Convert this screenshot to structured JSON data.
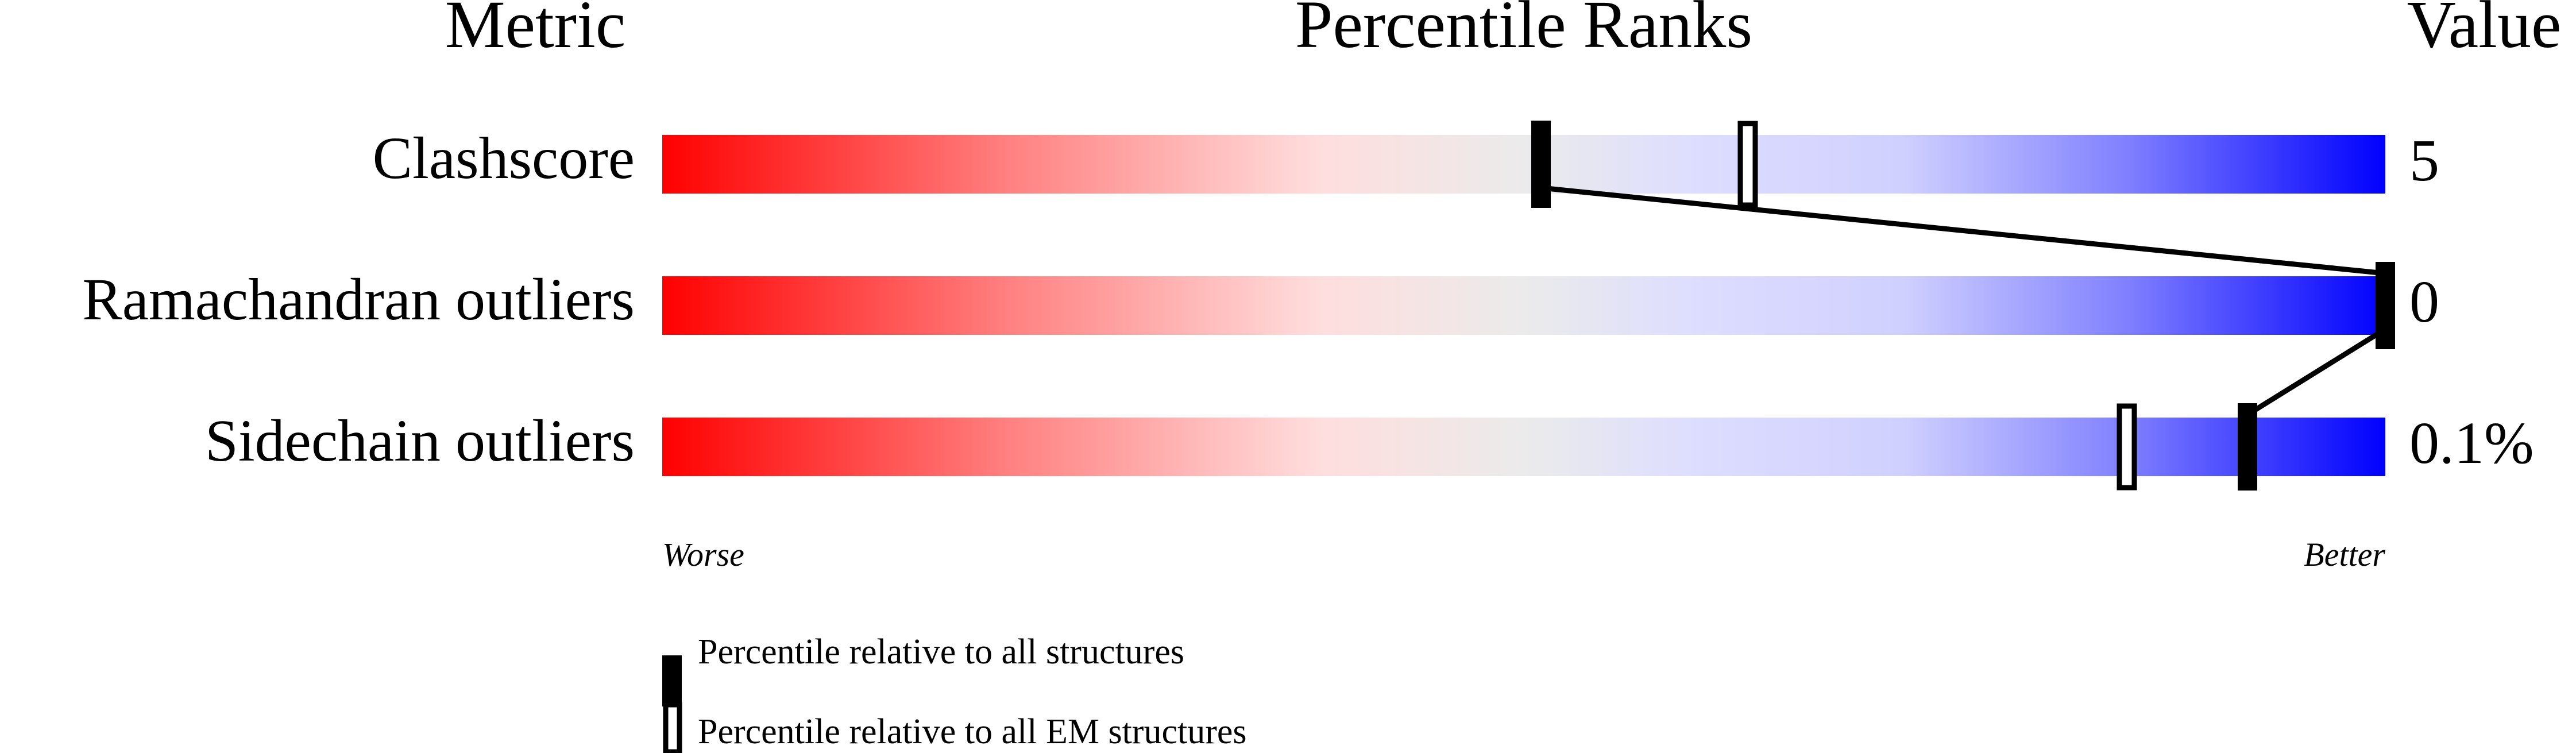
{
  "chart_data": {
    "type": "percentile-slider",
    "headers": {
      "metric": "Metric",
      "ranks": "Percentile Ranks",
      "value": "Value"
    },
    "xlim": [
      0,
      100
    ],
    "rows": [
      {
        "metric": "Clashscore",
        "value": "5",
        "percentile_all": 51,
        "percentile_em": 63
      },
      {
        "metric": "Ramachandran outliers",
        "value": "0",
        "percentile_all": 100,
        "percentile_em": null
      },
      {
        "metric": "Sidechain outliers",
        "value": "0.1%",
        "percentile_all": 92,
        "percentile_em": 85
      }
    ],
    "scale_labels": {
      "left": "Worse",
      "right": "Better"
    },
    "gradient_colors": [
      "#ff0000",
      "#ff8080",
      "#ffdddd",
      "#ebebeb",
      "#ddddff",
      "#d0d0ff",
      "#8080ff",
      "#0000ff"
    ],
    "legend": [
      {
        "marker": "filled",
        "label": "Percentile relative to all structures"
      },
      {
        "marker": "open",
        "label": "Percentile relative to all EM structures"
      }
    ]
  }
}
